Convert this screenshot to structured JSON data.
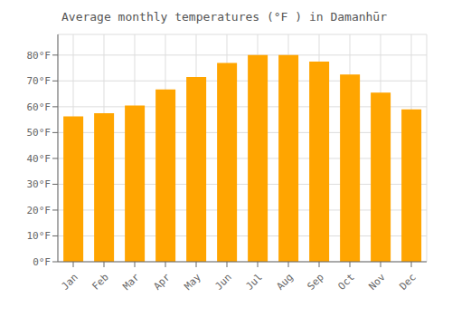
{
  "chart_data": {
    "type": "bar",
    "title": "Average monthly temperatures (°F ) in Damanhūr",
    "categories": [
      "Jan",
      "Feb",
      "Mar",
      "Apr",
      "May",
      "Jun",
      "Jul",
      "Aug",
      "Sep",
      "Oct",
      "Nov",
      "Dec"
    ],
    "values": [
      56.3,
      57.5,
      60.5,
      66.7,
      71.5,
      77.0,
      80.0,
      80.0,
      77.5,
      72.5,
      65.5,
      59.0
    ],
    "color": "#FFA500",
    "ylim": [
      0,
      88
    ],
    "yticks": [
      {
        "value": 0,
        "label": "0°F"
      },
      {
        "value": 10,
        "label": "10°F"
      },
      {
        "value": 20,
        "label": "20°F"
      },
      {
        "value": 30,
        "label": "30°F"
      },
      {
        "value": 40,
        "label": "40°F"
      },
      {
        "value": 50,
        "label": "50°F"
      },
      {
        "value": 60,
        "label": "60°F"
      },
      {
        "value": 70,
        "label": "70°F"
      },
      {
        "value": 80,
        "label": "80°F"
      }
    ],
    "grid": true
  }
}
